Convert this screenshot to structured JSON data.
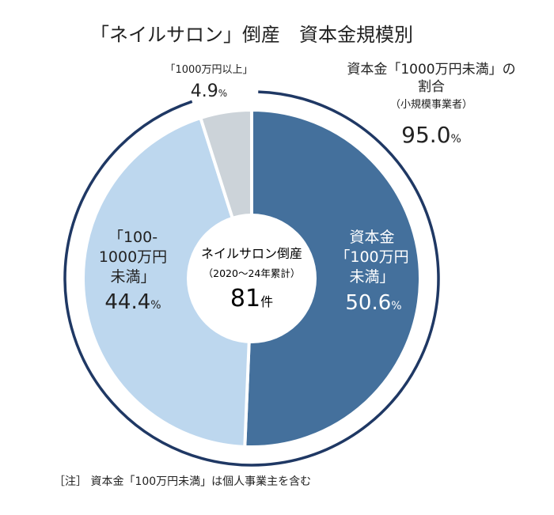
{
  "chart_data": {
    "type": "pie",
    "title": "「ネイルサロン」倒産　資本金規模別",
    "donut": true,
    "slices": [
      {
        "label_lines": [
          "資本金",
          "「100万円",
          "未満」"
        ],
        "value": 50.6,
        "value_text": "50.6",
        "color": "#44709c",
        "text_color": "#ffffff"
      },
      {
        "label_lines": [
          "「100-",
          "1000万円",
          "未満」"
        ],
        "value": 44.4,
        "value_text": "44.4",
        "color": "#bdd7ee",
        "text_color": "#222222"
      },
      {
        "label_lines": [
          "「1000万円以上」"
        ],
        "value": 4.9,
        "value_text": "4.9",
        "color": "#ccd3d9",
        "text_color": "#222222"
      }
    ],
    "percent_sign": "%",
    "center": {
      "line1": "ネイルサロン倒産",
      "line2": "（2020～24年累計）",
      "count": "81",
      "unit": "件"
    },
    "bracket": {
      "lines": [
        "資本金「1000万円未満」の",
        "割合",
        "（小規模事業者）"
      ],
      "value_text": "95.0",
      "value": 95.0,
      "color": "#1f3864"
    }
  },
  "note": "［注］ 資本金「100万円未満」は個人事業主を含む"
}
